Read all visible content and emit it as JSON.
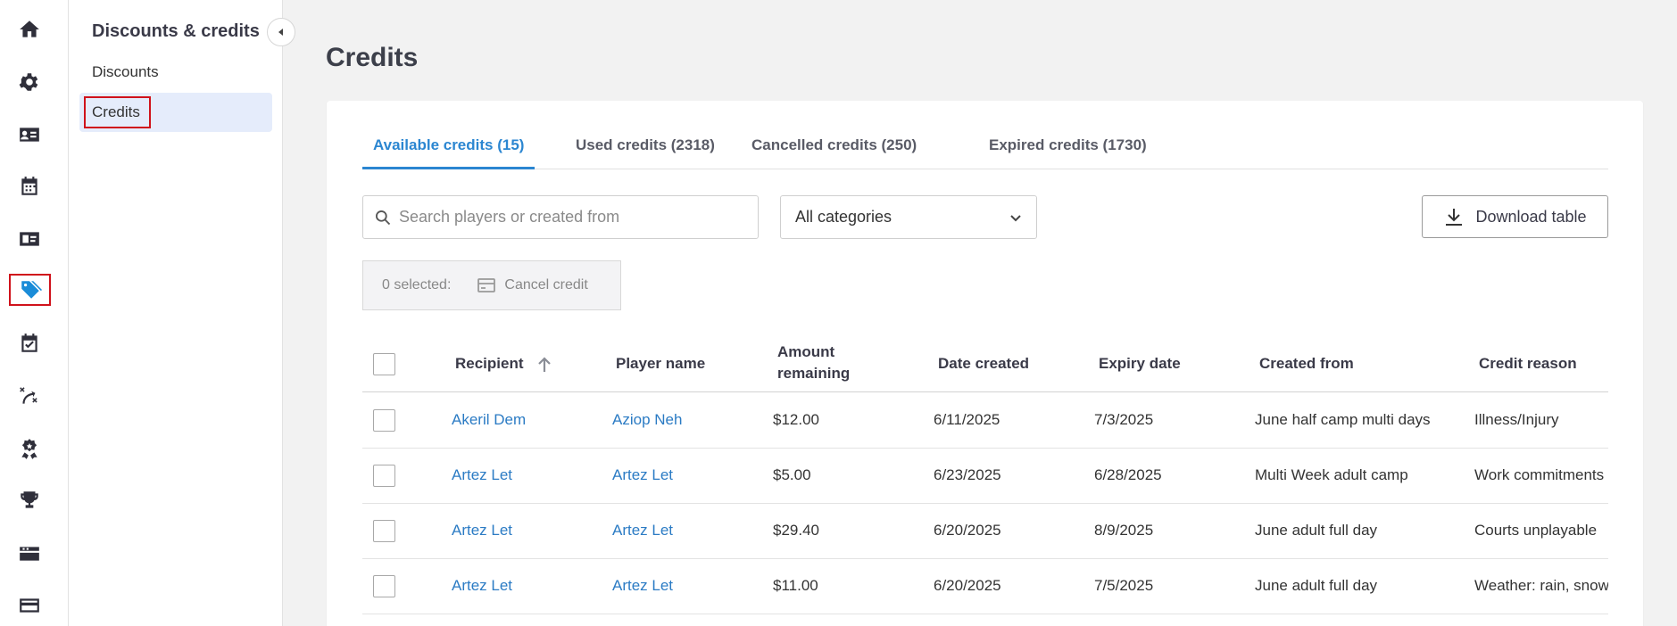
{
  "sidebar": {
    "icons": [
      {
        "name": "home-icon",
        "active": false
      },
      {
        "name": "gear-icon",
        "active": false
      },
      {
        "name": "contact-card-icon",
        "active": false
      },
      {
        "name": "calendar-icon",
        "active": false
      },
      {
        "name": "id-card-icon",
        "active": false
      },
      {
        "name": "tags-icon",
        "active": true
      },
      {
        "name": "calendar-check-icon",
        "active": false
      },
      {
        "name": "strategy-icon",
        "active": false
      },
      {
        "name": "award-icon",
        "active": false
      },
      {
        "name": "trophy-icon",
        "active": false
      },
      {
        "name": "ticket-icon",
        "active": false
      },
      {
        "name": "credit-card-icon",
        "active": false
      }
    ]
  },
  "subnav": {
    "title": "Discounts & credits",
    "items": [
      {
        "label": "Discounts",
        "active": false
      },
      {
        "label": "Credits",
        "active": true
      }
    ]
  },
  "page": {
    "title": "Credits"
  },
  "tabs": [
    {
      "label": "Available credits (15)",
      "active": true
    },
    {
      "label": "Used credits (2318)",
      "active": false
    },
    {
      "label": "Cancelled credits (250)",
      "active": false
    },
    {
      "label": "Expired credits (1730)",
      "active": false
    }
  ],
  "filters": {
    "search_placeholder": "Search players or created from",
    "category_value": "All categories",
    "download_label": "Download table"
  },
  "bulk": {
    "selected_text": "0 selected:",
    "cancel_label": "Cancel credit"
  },
  "table": {
    "headers": {
      "recipient": "Recipient",
      "player": "Player name",
      "amount_line1": "Amount",
      "amount_line2": "remaining",
      "date_created": "Date created",
      "expiry": "Expiry date",
      "created_from": "Created from",
      "reason": "Credit reason"
    },
    "rows": [
      {
        "recipient": "Akeril Dem",
        "player": "Aziop Neh",
        "amount": "$12.00",
        "date_created": "6/11/2025",
        "expiry": "7/3/2025",
        "created_from": "June half camp multi days",
        "reason": "Illness/Injury"
      },
      {
        "recipient": "Artez Let",
        "player": "Artez Let",
        "amount": "$5.00",
        "date_created": "6/23/2025",
        "expiry": "6/28/2025",
        "created_from": "Multi Week adult camp",
        "reason": "Work commitments"
      },
      {
        "recipient": "Artez Let",
        "player": "Artez Let",
        "amount": "$29.40",
        "date_created": "6/20/2025",
        "expiry": "8/9/2025",
        "created_from": "June adult full day",
        "reason": "Courts unplayable"
      },
      {
        "recipient": "Artez Let",
        "player": "Artez Let",
        "amount": "$11.00",
        "date_created": "6/20/2025",
        "expiry": "7/5/2025",
        "created_from": "June adult full day",
        "reason": "Weather: rain, snow"
      }
    ]
  }
}
